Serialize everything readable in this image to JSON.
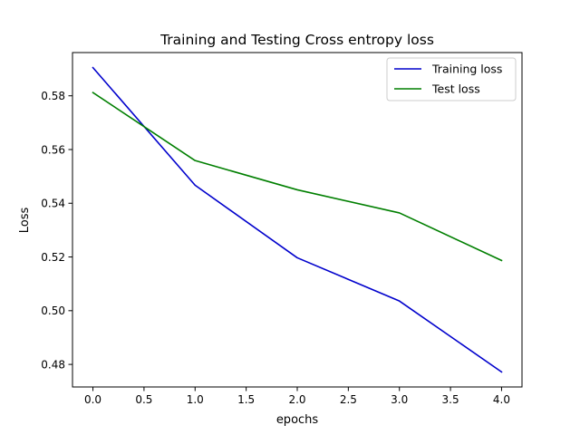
{
  "chart_data": {
    "type": "line",
    "title": "Training and Testing Cross entropy loss",
    "xlabel": "epochs",
    "ylabel": "Loss",
    "x": [
      0,
      1,
      2,
      3,
      4
    ],
    "series": [
      {
        "name": "Training loss",
        "color": "#0000cc",
        "values": [
          0.5905,
          0.5467,
          0.5197,
          0.5036,
          0.4772
        ]
      },
      {
        "name": "Test loss",
        "color": "#007f00",
        "values": [
          0.5812,
          0.5559,
          0.545,
          0.5364,
          0.5187
        ]
      }
    ],
    "xlim": [
      -0.2,
      4.2
    ],
    "ylim": [
      0.4716,
      0.5961
    ],
    "xticks": [
      0.0,
      0.5,
      1.0,
      1.5,
      2.0,
      2.5,
      3.0,
      3.5,
      4.0
    ],
    "xtick_labels": [
      "0.0",
      "0.5",
      "1.0",
      "1.5",
      "2.0",
      "2.5",
      "3.0",
      "3.5",
      "4.0"
    ],
    "yticks": [
      0.48,
      0.5,
      0.52,
      0.54,
      0.56,
      0.58
    ],
    "ytick_labels": [
      "0.48",
      "0.50",
      "0.52",
      "0.54",
      "0.56",
      "0.58"
    ],
    "grid": false,
    "legend_position": "upper right"
  }
}
